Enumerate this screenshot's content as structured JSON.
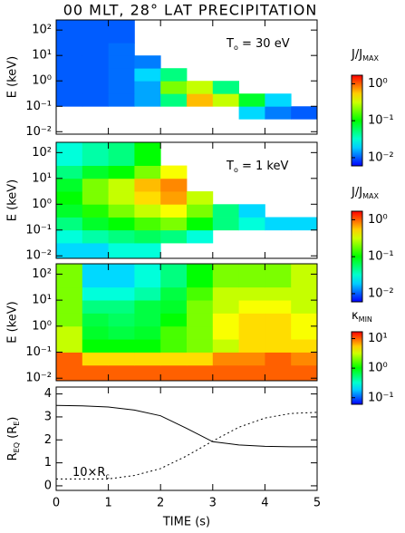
{
  "title": "00 MLT, 28° LAT PRECIPITATION",
  "chart_data": [
    {
      "type": "heatmap",
      "ylabel": "E (keV)",
      "annotation": [
        {
          "text": "T"
        },
        {
          "text": "o",
          "sub": true
        },
        {
          "text": " = 30 eV"
        }
      ],
      "colorbar_label": [
        {
          "text": "J/J"
        },
        {
          "text": "MAX",
          "sub": true
        }
      ],
      "colorbar_lim": [
        0.006,
        1.7
      ],
      "colorbar_ticks": [
        {
          "value": 1,
          "label": "10⁰"
        },
        {
          "value": 0.1,
          "label": "10⁻¹"
        },
        {
          "value": 0.01,
          "label": "10⁻²"
        }
      ],
      "xlim": [
        0,
        5
      ],
      "ylim": [
        0.008,
        250
      ],
      "log_y": true,
      "yticks": [
        {
          "value": 0.01,
          "label": "10⁻²"
        },
        {
          "value": 0.1,
          "label": "10⁻¹"
        },
        {
          "value": 1,
          "label": "10⁰"
        },
        {
          "value": 10,
          "label": "10¹"
        },
        {
          "value": 100,
          "label": "10²"
        }
      ],
      "x_bins": [
        0,
        0.5,
        1,
        1.5,
        2,
        2.5,
        3,
        3.5,
        4,
        4.5,
        5
      ],
      "y_bins": [
        0.008,
        0.0316,
        0.1,
        0.316,
        1,
        3.16,
        10,
        31.6,
        250
      ],
      "z": [
        [
          null,
          null,
          null,
          null,
          null,
          null,
          null,
          null,
          null,
          null
        ],
        [
          null,
          null,
          null,
          null,
          null,
          null,
          null,
          0.02,
          0.012,
          0.01
        ],
        [
          0.01,
          0.01,
          0.011,
          0.015,
          0.05,
          0.6,
          0.3,
          0.08,
          0.02,
          null
        ],
        [
          0.01,
          0.01,
          0.011,
          0.015,
          0.2,
          0.3,
          0.05,
          null,
          null,
          null
        ],
        [
          0.01,
          0.01,
          0.011,
          0.02,
          0.05,
          null,
          null,
          null,
          null,
          null
        ],
        [
          0.01,
          0.01,
          0.011,
          0.012,
          null,
          null,
          null,
          null,
          null,
          null
        ],
        [
          0.01,
          0.01,
          0.011,
          null,
          null,
          null,
          null,
          null,
          null,
          null
        ],
        [
          0.01,
          0.01,
          0.01,
          null,
          null,
          null,
          null,
          null,
          null,
          null
        ]
      ]
    },
    {
      "type": "heatmap",
      "ylabel": "E (keV)",
      "annotation": [
        {
          "text": "T"
        },
        {
          "text": "o",
          "sub": true
        },
        {
          "text": " = 1 keV"
        }
      ],
      "colorbar_label": [
        {
          "text": "J/J"
        },
        {
          "text": "MAX",
          "sub": true
        }
      ],
      "colorbar_lim": [
        0.006,
        1.7
      ],
      "colorbar_ticks": [
        {
          "value": 1,
          "label": "10⁰"
        },
        {
          "value": 0.1,
          "label": "10⁻¹"
        },
        {
          "value": 0.01,
          "label": "10⁻²"
        }
      ],
      "xlim": [
        0,
        5
      ],
      "ylim": [
        0.008,
        250
      ],
      "log_y": true,
      "yticks": [
        {
          "value": 0.01,
          "label": "10⁻²"
        },
        {
          "value": 0.1,
          "label": "10⁻¹"
        },
        {
          "value": 1,
          "label": "10⁰"
        },
        {
          "value": 10,
          "label": "10¹"
        },
        {
          "value": 100,
          "label": "10²"
        }
      ],
      "x_bins": [
        0,
        0.5,
        1,
        1.5,
        2,
        2.5,
        3,
        3.5,
        4,
        4.5,
        5
      ],
      "y_bins": [
        0.008,
        0.0316,
        0.1,
        0.316,
        1,
        3.16,
        10,
        31.6,
        250
      ],
      "z": [
        [
          0.02,
          0.02,
          0.03,
          0.03,
          null,
          null,
          null,
          null,
          null,
          null
        ],
        [
          0.03,
          0.04,
          0.05,
          0.06,
          0.05,
          0.03,
          null,
          null,
          null,
          null
        ],
        [
          0.05,
          0.08,
          0.1,
          0.15,
          0.2,
          0.1,
          0.05,
          0.03,
          0.02,
          0.02
        ],
        [
          0.08,
          0.12,
          0.2,
          0.3,
          0.4,
          0.2,
          0.05,
          0.02,
          null,
          null
        ],
        [
          0.1,
          0.2,
          0.3,
          0.5,
          0.7,
          0.3,
          null,
          null,
          null,
          null
        ],
        [
          0.08,
          0.2,
          0.3,
          0.6,
          0.8,
          null,
          null,
          null,
          null,
          null
        ],
        [
          0.05,
          0.08,
          0.1,
          0.2,
          0.4,
          null,
          null,
          null,
          null,
          null
        ],
        [
          0.03,
          0.04,
          0.05,
          0.1,
          null,
          null,
          null,
          null,
          null,
          null
        ]
      ]
    },
    {
      "type": "heatmap",
      "ylabel": "E (keV)",
      "colorbar_label": [
        {
          "text": "κ"
        },
        {
          "text": "MIN",
          "sub": true
        }
      ],
      "colorbar_lim": [
        0.06,
        17
      ],
      "colorbar_ticks": [
        {
          "value": 10,
          "label": "10¹"
        },
        {
          "value": 1,
          "label": "10⁰"
        },
        {
          "value": 0.1,
          "label": "10⁻¹"
        }
      ],
      "xlim": [
        0,
        5
      ],
      "ylim": [
        0.008,
        250
      ],
      "log_y": true,
      "yticks": [
        {
          "value": 0.01,
          "label": "10⁻²"
        },
        {
          "value": 0.1,
          "label": "10⁻¹"
        },
        {
          "value": 1,
          "label": "10⁰"
        },
        {
          "value": 10,
          "label": "10¹"
        },
        {
          "value": 100,
          "label": "10²"
        }
      ],
      "x_bins": [
        0,
        0.5,
        1,
        1.5,
        2,
        2.5,
        3,
        3.5,
        4,
        4.5,
        5
      ],
      "y_bins": [
        0.008,
        0.0316,
        0.1,
        0.316,
        1,
        3.16,
        10,
        31.6,
        250
      ],
      "z": [
        [
          10,
          10,
          10,
          10,
          10,
          10,
          10,
          10,
          10,
          10
        ],
        [
          10,
          5,
          5,
          5,
          5,
          5,
          8,
          8,
          10,
          8
        ],
        [
          3,
          1,
          1,
          1,
          1.5,
          2,
          3,
          5,
          5,
          5
        ],
        [
          3,
          0.8,
          0.7,
          0.8,
          1.5,
          2,
          4,
          5,
          5,
          4
        ],
        [
          2,
          0.7,
          0.6,
          0.7,
          1,
          2,
          4,
          5,
          5,
          4
        ],
        [
          2,
          0.5,
          0.5,
          0.7,
          0.8,
          2,
          3,
          4,
          4,
          3
        ],
        [
          2,
          0.3,
          0.3,
          0.4,
          0.7,
          1.5,
          3,
          3,
          3,
          3
        ],
        [
          2,
          0.2,
          0.2,
          0.3,
          0.5,
          1,
          2,
          2,
          2,
          3
        ]
      ]
    },
    {
      "type": "line",
      "ylabel": [
        {
          "text": "R"
        },
        {
          "text": "EQ",
          "sub": true
        },
        {
          "text": " (R"
        },
        {
          "text": "E",
          "sub": true
        },
        {
          "text": ")"
        }
      ],
      "xlabel": "TIME   (s)",
      "annotation": [
        {
          "text": "10×R"
        },
        {
          "text": "c",
          "sub": true
        }
      ],
      "xlim": [
        0,
        5
      ],
      "ylim": [
        -0.2,
        4.3
      ],
      "xticks": [
        0,
        1,
        2,
        3,
        4,
        5
      ],
      "yticks": [
        0,
        1,
        2,
        3,
        4
      ],
      "x": [
        0,
        0.5,
        1,
        1.5,
        2,
        2.5,
        3,
        3.5,
        4,
        4.5,
        5
      ],
      "series": [
        {
          "color": "#000000",
          "dashed": false,
          "values": [
            3.5,
            3.48,
            3.43,
            3.3,
            3.05,
            2.5,
            1.92,
            1.78,
            1.72,
            1.7,
            1.7
          ]
        },
        {
          "color": "#000000",
          "dashed": true,
          "values": [
            0.3,
            0.3,
            0.3,
            0.45,
            0.75,
            1.3,
            1.95,
            2.55,
            2.95,
            3.15,
            3.2
          ]
        }
      ]
    }
  ]
}
